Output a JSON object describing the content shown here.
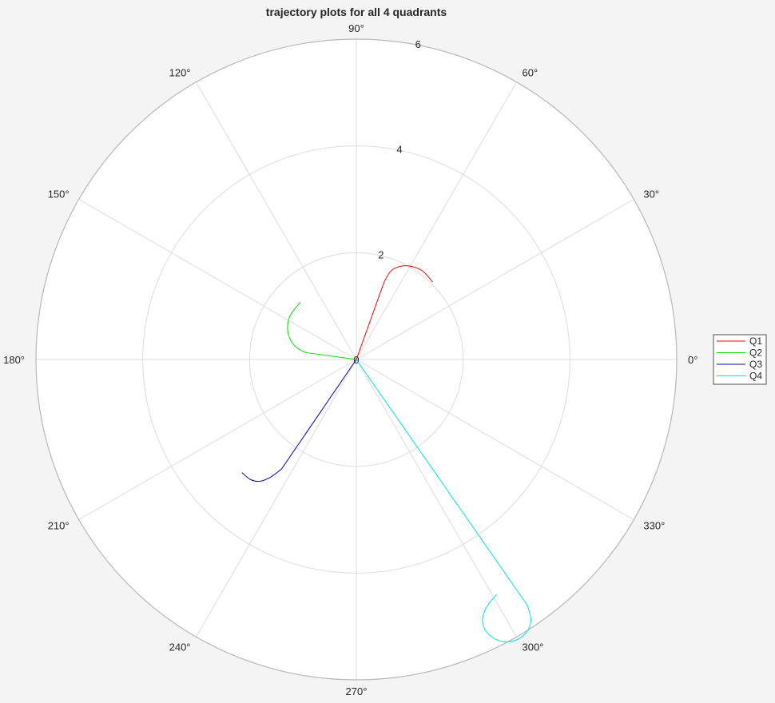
{
  "chart_data": {
    "type": "line",
    "coordinate_system": "polar",
    "title": "trajectory plots for all 4 quadrants",
    "rlim": [
      0,
      6
    ],
    "r_ticks": [
      "0",
      "2",
      "4",
      "6"
    ],
    "theta_ticks": [
      "0°",
      "30°",
      "60°",
      "90°",
      "120°",
      "150°",
      "180°",
      "210°",
      "240°",
      "270°",
      "300°",
      "330°"
    ],
    "grid": true,
    "legend_position": "right",
    "series": [
      {
        "name": "Q1",
        "color": "#ff0000",
        "points_xy": [
          [
            0,
            0
          ],
          [
            0.52,
            1.45
          ],
          [
            0.65,
            1.66
          ],
          [
            0.85,
            1.75
          ],
          [
            1.05,
            1.74
          ],
          [
            1.25,
            1.65
          ],
          [
            1.43,
            1.45
          ]
        ]
      },
      {
        "name": "Q2",
        "color": "#00e000",
        "points_xy": [
          [
            0,
            0
          ],
          [
            -0.95,
            0.13
          ],
          [
            -1.15,
            0.25
          ],
          [
            -1.28,
            0.5
          ],
          [
            -1.25,
            0.8
          ],
          [
            -1.05,
            1.07
          ]
        ]
      },
      {
        "name": "Q3",
        "color": "#0000c8",
        "points_xy": [
          [
            0,
            0
          ],
          [
            -1.4,
            -2.05
          ],
          [
            -1.6,
            -2.2
          ],
          [
            -1.8,
            -2.28
          ],
          [
            -1.98,
            -2.25
          ],
          [
            -2.14,
            -2.12
          ]
        ]
      },
      {
        "name": "Q4",
        "color": "#00e6e6",
        "points_xy": [
          [
            0,
            0
          ],
          [
            3.2,
            -4.6
          ],
          [
            3.27,
            -4.88
          ],
          [
            3.18,
            -5.12
          ],
          [
            2.95,
            -5.27
          ],
          [
            2.68,
            -5.27
          ],
          [
            2.45,
            -5.12
          ],
          [
            2.36,
            -4.88
          ],
          [
            2.45,
            -4.62
          ],
          [
            2.63,
            -4.4
          ]
        ]
      }
    ]
  }
}
